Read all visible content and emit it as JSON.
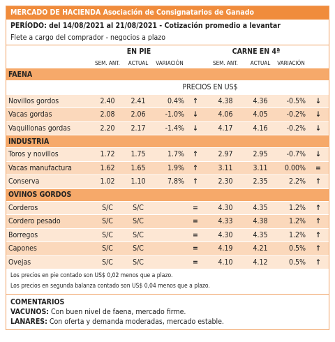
{
  "header": {
    "title": "MERCADO DE HACIENDA",
    "subtitle": "Asociación de Consignatarios de Ganado",
    "period": "PERÍODO: del 14/08/2021 al 21/08/2021 - Cotización promedio a levantar",
    "note": "Flete a cargo del comprador - negocios a plazo"
  },
  "columns": {
    "group1": "EN PIE",
    "group2": "CARNE EN 4ª",
    "sub": [
      "SEM. ANT.",
      "ACTUAL",
      "VARIACIÓN",
      "SEM. ANT.",
      "ACTUAL",
      "VARIACIÓN"
    ],
    "currency": "PRECIOS EN US$"
  },
  "sections": [
    {
      "name": "FAENA",
      "rows": [
        [
          "Novillos gordos",
          "2.40",
          "2.41",
          "0.4%",
          "↑",
          "4.38",
          "4.36",
          "-0.5%",
          "↓"
        ],
        [
          "Vacas gordas",
          "2.08",
          "2.06",
          "-1.0%",
          "↓",
          "4.06",
          "4.05",
          "-0.2%",
          "↓"
        ],
        [
          "Vaquillonas gordas",
          "2.20",
          "2.17",
          "-1.4%",
          "↓",
          "4.17",
          "4.16",
          "-0.2%",
          "↓"
        ]
      ]
    },
    {
      "name": "INDUSTRIA",
      "rows": [
        [
          "Toros y novillos",
          "1.72",
          "1.75",
          "1.7%",
          "↑",
          "2.97",
          "2.95",
          "-0.7%",
          "↓"
        ],
        [
          "Vacas manufactura",
          "1.62",
          "1.65",
          "1.9%",
          "↑",
          "3.11",
          "3.11",
          "0.00%",
          "="
        ],
        [
          "Conserva",
          "1.02",
          "1.10",
          "7.8%",
          "↑",
          "2.30",
          "2.35",
          "2.2%",
          "↑"
        ]
      ]
    },
    {
      "name": "OVINOS GORDOS",
      "rows": [
        [
          "Corderos",
          "S/C",
          "S/C",
          null,
          "=",
          "4.30",
          "4.35",
          "1.2%",
          "↑"
        ],
        [
          "Cordero pesado",
          "S/C",
          "S/C",
          null,
          "=",
          "4.33",
          "4.38",
          "1.2%",
          "↑"
        ],
        [
          "Borregos",
          "S/C",
          "S/C",
          null,
          "=",
          "4.30",
          "4.35",
          "1.2%",
          "↑"
        ],
        [
          "Capones",
          "S/C",
          "S/C",
          null,
          "=",
          "4.19",
          "4.21",
          "0.5%",
          "↑"
        ],
        [
          "Ovejas",
          "S/C",
          "S/C",
          null,
          "=",
          "4.10",
          "4.12",
          "0.5%",
          "↑"
        ]
      ]
    }
  ],
  "footnotes": [
    "Los precios en pie contado son US$ 0,02 menos que a plazo.",
    "Los precios en segunda balanza contado son US$ 0,04 menos que a plazo."
  ],
  "comments": {
    "title": "COMENTARIOS",
    "items": [
      {
        "label": "VACUNOS:",
        "text": "Con buen nivel de faena, mercado firme."
      },
      {
        "label": "LANARES:",
        "text": "Con oferta y demanda moderadas, mercado estable."
      }
    ]
  }
}
